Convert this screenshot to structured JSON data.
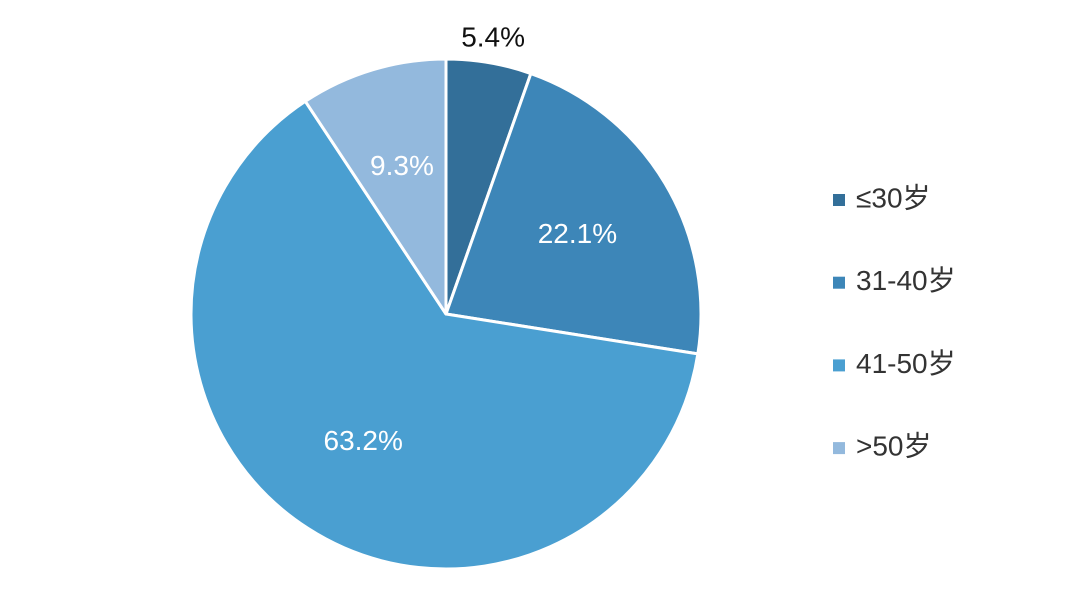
{
  "chart_data": {
    "type": "pie",
    "categories": [
      "≤30岁",
      "31-40岁",
      "41-50岁",
      ">50岁"
    ],
    "values": [
      5.4,
      22.1,
      63.2,
      9.3
    ],
    "value_labels": [
      "5.4%",
      "22.1%",
      "63.2%",
      "9.3%"
    ],
    "colors": [
      "#336f99",
      "#3d86b8",
      "#4a9fd1",
      "#93b9dd"
    ],
    "legend": "right"
  }
}
